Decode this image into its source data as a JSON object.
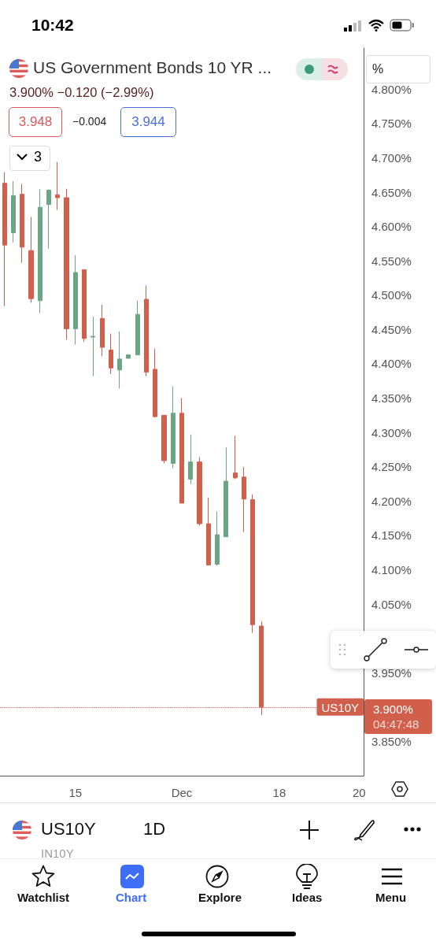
{
  "chart_data": {
    "type": "candlestick",
    "title": "US Government Bonds 10 YR ...",
    "categories": [
      null,
      null,
      null,
      null,
      null,
      null,
      null,
      null,
      "15",
      null,
      null,
      null,
      null,
      null,
      null,
      null,
      null,
      null,
      null,
      null,
      "Dec",
      null,
      null,
      null,
      null,
      null,
      null,
      null,
      null,
      null,
      null,
      "18",
      null,
      null,
      null,
      null,
      null,
      null,
      null,
      null,
      "20"
    ],
    "ohlc": [
      [
        4.663,
        4.679,
        4.484,
        4.573
      ],
      [
        4.591,
        4.666,
        4.577,
        4.645
      ],
      [
        4.647,
        4.662,
        4.547,
        4.57
      ],
      [
        4.565,
        4.614,
        4.489,
        4.495
      ],
      [
        4.492,
        4.654,
        4.474,
        4.628
      ],
      [
        4.632,
        4.654,
        4.568,
        4.653
      ],
      [
        4.646,
        4.694,
        4.624,
        4.642
      ],
      [
        4.642,
        4.655,
        4.435,
        4.451
      ],
      [
        4.451,
        4.558,
        4.428,
        4.533
      ],
      [
        4.537,
        4.537,
        4.432,
        4.437
      ],
      [
        4.439,
        4.469,
        4.382,
        4.44
      ],
      [
        4.466,
        4.486,
        4.411,
        4.424
      ],
      [
        4.42,
        4.444,
        4.385,
        4.394
      ],
      [
        4.391,
        4.447,
        4.364,
        4.407
      ],
      [
        4.408,
        4.413,
        4.408,
        4.413
      ],
      [
        4.413,
        4.492,
        4.413,
        4.472
      ],
      [
        4.494,
        4.514,
        4.382,
        4.388
      ],
      [
        4.392,
        4.422,
        4.322,
        4.323
      ],
      [
        4.325,
        4.325,
        4.255,
        4.259
      ],
      [
        4.255,
        4.367,
        4.248,
        4.328
      ],
      [
        4.328,
        4.35,
        4.197,
        4.197
      ],
      [
        4.232,
        4.297,
        4.225,
        4.257
      ],
      [
        4.257,
        4.264,
        4.164,
        4.167
      ],
      [
        4.167,
        4.205,
        4.107,
        4.107
      ],
      [
        4.108,
        4.185,
        4.106,
        4.151
      ],
      [
        4.148,
        4.278,
        4.148,
        4.229
      ],
      [
        4.241,
        4.295,
        4.232,
        4.234
      ],
      [
        4.235,
        4.25,
        4.155,
        4.203
      ],
      [
        4.202,
        4.21,
        4.008,
        4.02
      ],
      [
        4.018,
        4.025,
        3.888,
        3.9
      ],
      null,
      null,
      null,
      null,
      null,
      null,
      null,
      null,
      null,
      null,
      null
    ],
    "colors": [
      "#d0604b",
      "#6ba583",
      "#d0604b",
      "#d0604b",
      "#6ba583",
      "#6ba583",
      "#d0604b",
      "#d0604b",
      "#6ba583",
      "#d0604b",
      "#6ba583",
      "#d0604b",
      "#d0604b",
      "#6ba583",
      "#6ba583",
      "#6ba583",
      "#d0604b",
      "#d0604b",
      "#d0604b",
      "#6ba583",
      "#d0604b",
      "#6ba583",
      "#d0604b",
      "#d0604b",
      "#6ba583",
      "#6ba583",
      "#d0604b",
      "#d0604b",
      "#d0604b",
      "#d0604b",
      null,
      null,
      null,
      null,
      null,
      null,
      null,
      null,
      null,
      null,
      null
    ],
    "ylim": [
      3.8,
      4.86
    ],
    "yticks": [
      {
        "value": 3.85,
        "label": "3.850%"
      },
      {
        "value": 3.95,
        "label": "3.950%"
      },
      {
        "value": 4.05,
        "label": "4.050%"
      },
      {
        "value": 4.1,
        "label": "4.100%"
      },
      {
        "value": 4.15,
        "label": "4.150%"
      },
      {
        "value": 4.2,
        "label": "4.200%"
      },
      {
        "value": 4.25,
        "label": "4.250%"
      },
      {
        "value": 4.3,
        "label": "4.300%"
      },
      {
        "value": 4.35,
        "label": "4.350%"
      },
      {
        "value": 4.4,
        "label": "4.400%"
      },
      {
        "value": 4.45,
        "label": "4.450%"
      },
      {
        "value": 4.5,
        "label": "4.500%"
      },
      {
        "value": 4.55,
        "label": "4.550%"
      },
      {
        "value": 4.6,
        "label": "4.600%"
      },
      {
        "value": 4.65,
        "label": "4.650%"
      },
      {
        "value": 4.7,
        "label": "4.700%"
      },
      {
        "value": 4.75,
        "label": "4.750%"
      },
      {
        "value": 4.8,
        "label": "4.800%"
      }
    ],
    "ref_lines": [
      {
        "axis": "y",
        "value": 3.9,
        "label": "US10Y",
        "color": "#d0604b",
        "line_style": "dotted"
      }
    ],
    "annotations": [
      "10:42",
      "3.900% −0.120 (−2.99%)",
      "3.948",
      "−0.004",
      "3.944",
      "3",
      "%",
      "3.900%",
      "04:47:48",
      "US10Y",
      "1D",
      "IN10Y",
      "Watchlist",
      "Chart",
      "Explore",
      "Ideas",
      "Menu"
    ]
  }
}
